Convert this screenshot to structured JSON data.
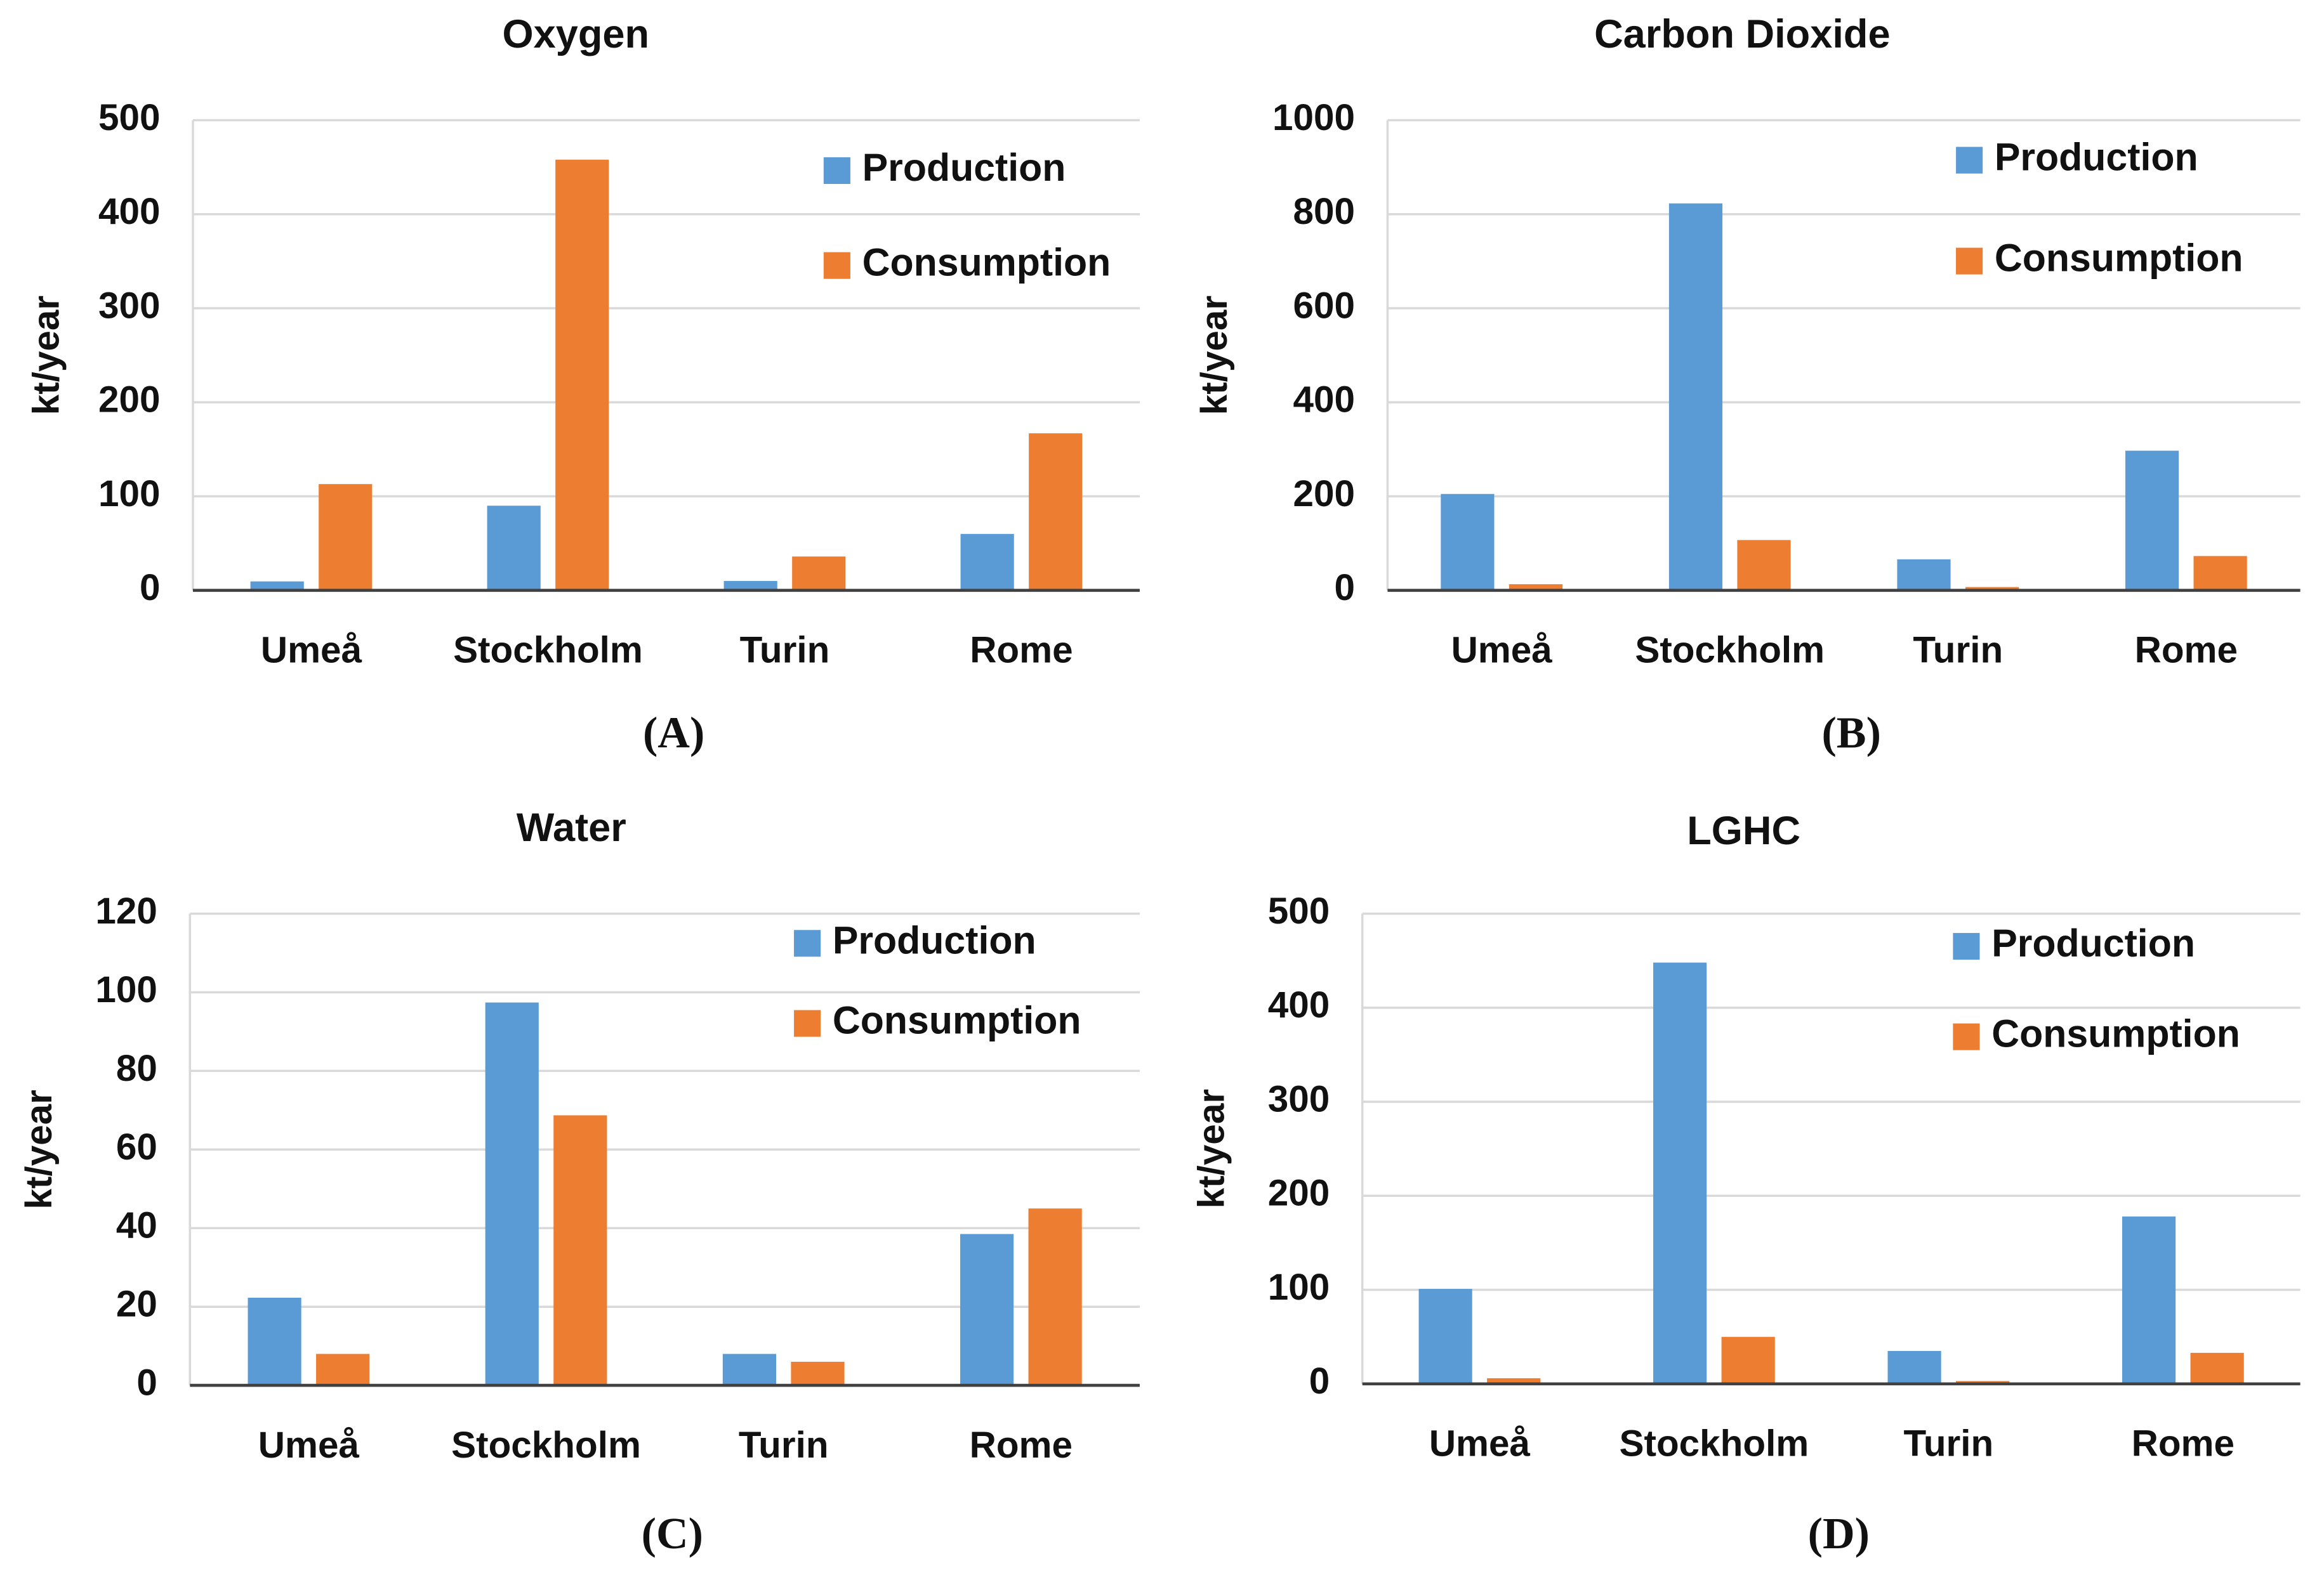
{
  "chart_data": [
    {
      "type": "bar",
      "title": "Oxygen",
      "caption": "(A)",
      "y_label": "kt/year",
      "categories": [
        "Umeå",
        "Stockholm",
        "Turin",
        "Rome"
      ],
      "series": [
        {
          "name": "Production",
          "color": "#5b9bd5",
          "values": [
            9.5,
            90,
            10,
            60
          ]
        },
        {
          "name": "Consumption",
          "color": "#ed7d31",
          "values": [
            113,
            458,
            36,
            167
          ]
        }
      ],
      "ylim": [
        0,
        500
      ],
      "yticks": [
        0,
        100,
        200,
        300,
        400,
        500
      ],
      "grid": true
    },
    {
      "type": "bar",
      "title": "Carbon Dioxide",
      "caption": "(B)",
      "y_label": "kt/year",
      "categories": [
        "Umeå",
        "Stockholm",
        "Turin",
        "Rome"
      ],
      "series": [
        {
          "name": "Production",
          "color": "#5b9bd5",
          "values": [
            205,
            823,
            66,
            297
          ]
        },
        {
          "name": "Consumption",
          "color": "#ed7d31",
          "values": [
            13,
            107,
            7,
            73
          ]
        }
      ],
      "ylim": [
        0,
        1000
      ],
      "yticks": [
        0,
        200,
        400,
        600,
        800,
        1000
      ],
      "grid": true
    },
    {
      "type": "bar",
      "title": "Water",
      "caption": "(C)",
      "y_label": "kt/year",
      "categories": [
        "Umeå",
        "Stockholm",
        "Turin",
        "Rome"
      ],
      "series": [
        {
          "name": "Production",
          "color": "#5b9bd5",
          "values": [
            22.3,
            97.4,
            8,
            38.5
          ]
        },
        {
          "name": "Consumption",
          "color": "#ed7d31",
          "values": [
            8,
            68.7,
            6,
            45
          ]
        }
      ],
      "ylim": [
        0,
        120
      ],
      "yticks": [
        0,
        20,
        40,
        60,
        80,
        100,
        120
      ],
      "grid": true
    },
    {
      "type": "bar",
      "title": "LGHC",
      "caption": "(D)",
      "y_label": "kt/year",
      "categories": [
        "Umeå",
        "Stockholm",
        "Turin",
        "Rome"
      ],
      "series": [
        {
          "name": "Production",
          "color": "#5b9bd5",
          "values": [
            101,
            448,
            35,
            178
          ]
        },
        {
          "name": "Consumption",
          "color": "#ed7d31",
          "values": [
            6,
            50,
            3,
            33
          ]
        }
      ],
      "ylim": [
        0,
        500
      ],
      "yticks": [
        0,
        100,
        200,
        300,
        400,
        500
      ],
      "grid": true
    }
  ]
}
